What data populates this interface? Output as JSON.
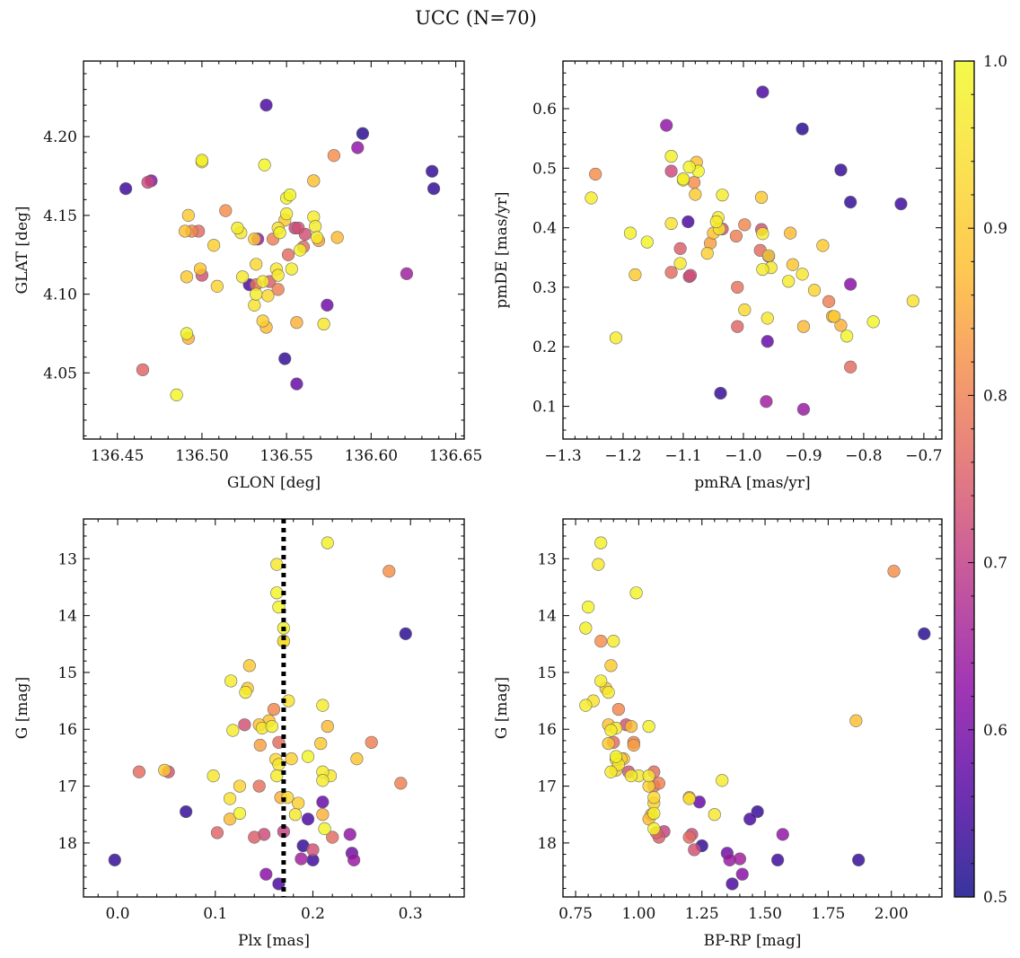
{
  "chart_data": {
    "title": "UCC (N=70)",
    "type": "scatter",
    "colorbar": {
      "colormap": "plasma",
      "range": [
        0.5,
        1.0
      ],
      "ticks": [
        "0.5",
        "0.6",
        "0.7",
        "0.8",
        "0.9",
        "1.0"
      ]
    },
    "panels": [
      {
        "id": "glon-glat",
        "xlabel": "GLON [deg]",
        "ylabel": "GLAT [deg]",
        "xlim": [
          136.43,
          136.655
        ],
        "ylim": [
          4.008,
          4.248
        ],
        "x_inverted": false,
        "y_inverted": false,
        "xticks": [
          "136.45",
          "136.50",
          "136.55",
          "136.60",
          "136.65"
        ],
        "yticks": [
          "4.05",
          "4.10",
          "4.15",
          "4.20"
        ]
      },
      {
        "id": "pmra-pmde",
        "xlabel": "pmRA [mas/yr]",
        "ylabel": "pmDE [mas/yr]",
        "xlim": [
          -1.3,
          -0.67
        ],
        "ylim": [
          0.045,
          0.68
        ],
        "x_inverted": false,
        "y_inverted": false,
        "xticks": [
          "−1.3",
          "−1.2",
          "−1.1",
          "−1.0",
          "−0.9",
          "−0.8",
          "−0.7"
        ],
        "yticks": [
          "0.1",
          "0.2",
          "0.3",
          "0.4",
          "0.5",
          "0.6"
        ]
      },
      {
        "id": "plx-g",
        "xlabel": "Plx [mas]",
        "ylabel": "G [mag]",
        "xlim": [
          -0.035,
          0.355
        ],
        "ylim": [
          12.3,
          18.95
        ],
        "x_inverted": false,
        "y_inverted": true,
        "xticks": [
          "0.0",
          "0.1",
          "0.2",
          "0.3"
        ],
        "yticks": [
          "13",
          "14",
          "15",
          "16",
          "17",
          "18"
        ],
        "vline": 0.17
      },
      {
        "id": "bprp-g",
        "xlabel": "BP-RP [mag]",
        "ylabel": "G [mag]",
        "xlim": [
          0.7,
          2.2
        ],
        "ylim": [
          12.3,
          18.95
        ],
        "x_inverted": false,
        "y_inverted": true,
        "xticks": [
          "0.75",
          "1.00",
          "1.25",
          "1.50",
          "1.75",
          "2.00"
        ],
        "yticks": [
          "13",
          "14",
          "15",
          "16",
          "17",
          "18"
        ]
      }
    ],
    "stars": [
      {
        "glon": 136.538,
        "glat": 4.22,
        "pmra": -0.968,
        "pmde": 0.628,
        "plx": 0.165,
        "bprp": 1.37,
        "g": 18.72,
        "p": 0.55
      },
      {
        "glon": 136.595,
        "glat": 4.202,
        "pmra": -0.902,
        "pmde": 0.566,
        "plx": 0.295,
        "bprp": 2.13,
        "g": 14.32,
        "p": 0.52
      },
      {
        "glon": 136.592,
        "glat": 4.193,
        "pmra": -1.128,
        "pmde": 0.572,
        "plx": 0.238,
        "bprp": 1.57,
        "g": 17.85,
        "p": 0.63
      },
      {
        "glon": 136.578,
        "glat": 4.188,
        "pmra": -1.246,
        "pmde": 0.49,
        "plx": 0.278,
        "bprp": 2.01,
        "g": 13.22,
        "p": 0.82
      },
      {
        "glon": 136.636,
        "glat": 4.178,
        "pmra": -0.838,
        "pmde": 0.497,
        "plx": 0.07,
        "bprp": 1.47,
        "g": 17.45,
        "p": 0.53
      },
      {
        "glon": 136.637,
        "glat": 4.167,
        "pmra": -0.822,
        "pmde": 0.443,
        "plx": -0.003,
        "bprp": 1.87,
        "g": 18.3,
        "p": 0.53
      },
      {
        "glon": 136.455,
        "glat": 4.167,
        "pmra": -0.738,
        "pmde": 0.44,
        "plx": 0.2,
        "bprp": 1.55,
        "g": 18.3,
        "p": 0.54
      },
      {
        "glon": 136.47,
        "glat": 4.172,
        "pmra": -0.822,
        "pmde": 0.305,
        "plx": 0.152,
        "bprp": 1.41,
        "g": 18.55,
        "p": 0.62
      },
      {
        "glon": 136.468,
        "glat": 4.171,
        "pmra": -1.12,
        "pmde": 0.495,
        "plx": 0.15,
        "bprp": 1.21,
        "g": 17.85,
        "p": 0.72
      },
      {
        "glon": 136.5,
        "glat": 4.185,
        "pmra": -1.12,
        "pmde": 0.52,
        "plx": 0.215,
        "bprp": 0.85,
        "g": 12.72,
        "p": 0.98
      },
      {
        "glon": 136.5,
        "glat": 4.184,
        "pmra": -1.1,
        "pmde": 0.48,
        "plx": 0.163,
        "bprp": 0.84,
        "g": 13.1,
        "p": 0.96
      },
      {
        "glon": 136.537,
        "glat": 4.182,
        "pmra": -1.075,
        "pmde": 0.495,
        "plx": 0.163,
        "bprp": 0.99,
        "g": 13.6,
        "p": 0.99
      },
      {
        "glon": 136.566,
        "glat": 4.172,
        "pmra": -1.078,
        "pmde": 0.51,
        "plx": 0.155,
        "bprp": 1.86,
        "g": 15.85,
        "p": 0.88
      },
      {
        "glon": 136.552,
        "glat": 4.163,
        "pmra": -1.09,
        "pmde": 0.502,
        "plx": 0.165,
        "bprp": 0.8,
        "g": 13.85,
        "p": 0.99
      },
      {
        "glon": 136.55,
        "glat": 4.161,
        "pmra": -1.1,
        "pmde": 0.482,
        "plx": 0.17,
        "bprp": 0.79,
        "g": 14.22,
        "p": 0.98
      },
      {
        "glon": 136.514,
        "glat": 4.153,
        "pmra": -1.082,
        "pmde": 0.476,
        "plx": 0.17,
        "bprp": 0.85,
        "g": 14.45,
        "p": 0.82
      },
      {
        "glon": 136.492,
        "glat": 4.15,
        "pmra": -1.08,
        "pmde": 0.456,
        "plx": 0.135,
        "bprp": 0.89,
        "g": 14.88,
        "p": 0.9
      },
      {
        "glon": 136.55,
        "glat": 4.151,
        "pmra": -1.035,
        "pmde": 0.455,
        "plx": 0.17,
        "bprp": 0.9,
        "g": 14.45,
        "p": 0.97
      },
      {
        "glon": 136.566,
        "glat": 4.149,
        "pmra": -1.253,
        "pmde": 0.45,
        "plx": 0.116,
        "bprp": 0.85,
        "g": 15.15,
        "p": 0.97
      },
      {
        "glon": 136.549,
        "glat": 4.147,
        "pmra": -0.97,
        "pmde": 0.451,
        "plx": 0.133,
        "bprp": 0.87,
        "g": 15.28,
        "p": 0.9
      },
      {
        "glon": 136.567,
        "glat": 4.143,
        "pmra": -1.042,
        "pmde": 0.417,
        "plx": 0.131,
        "bprp": 0.88,
        "g": 15.35,
        "p": 0.97
      },
      {
        "glon": 136.545,
        "glat": 4.142,
        "pmra": -1.12,
        "pmde": 0.407,
        "plx": 0.175,
        "bprp": 0.82,
        "g": 15.5,
        "p": 0.95
      },
      {
        "glon": 136.521,
        "glat": 4.142,
        "pmra": -1.045,
        "pmde": 0.41,
        "plx": 0.21,
        "bprp": 0.79,
        "g": 15.58,
        "p": 0.97
      },
      {
        "glon": 136.494,
        "glat": 4.14,
        "pmra": -0.998,
        "pmde": 0.405,
        "plx": 0.16,
        "bprp": 0.92,
        "g": 15.65,
        "p": 0.81
      },
      {
        "glon": 136.557,
        "glat": 4.142,
        "pmra": -0.97,
        "pmde": 0.397,
        "plx": 0.13,
        "bprp": 0.95,
        "g": 15.92,
        "p": 0.73
      },
      {
        "glon": 136.49,
        "glat": 4.14,
        "pmra": -1.05,
        "pmde": 0.391,
        "plx": 0.145,
        "bprp": 0.88,
        "g": 15.92,
        "p": 0.88
      },
      {
        "glon": 136.523,
        "glat": 4.139,
        "pmra": -1.04,
        "pmde": 0.398,
        "plx": 0.148,
        "bprp": 0.91,
        "g": 15.98,
        "p": 0.96
      },
      {
        "glon": 136.546,
        "glat": 4.139,
        "pmra": -1.188,
        "pmde": 0.391,
        "plx": 0.158,
        "bprp": 1.04,
        "g": 15.95,
        "p": 0.98
      },
      {
        "glon": 136.568,
        "glat": 4.136,
        "pmra": -0.968,
        "pmde": 0.39,
        "plx": 0.118,
        "bprp": 0.89,
        "g": 16.02,
        "p": 0.97
      },
      {
        "glon": 136.58,
        "glat": 4.136,
        "pmra": -0.922,
        "pmde": 0.391,
        "plx": 0.215,
        "bprp": 0.97,
        "g": 15.95,
        "p": 0.87
      },
      {
        "glon": 136.542,
        "glat": 4.135,
        "pmra": -1.012,
        "pmde": 0.386,
        "plx": 0.26,
        "bprp": 0.98,
        "g": 16.23,
        "p": 0.8
      },
      {
        "glon": 136.531,
        "glat": 4.135,
        "pmra": -0.868,
        "pmde": 0.37,
        "plx": 0.208,
        "bprp": 0.88,
        "g": 16.25,
        "p": 0.9
      },
      {
        "glon": 136.569,
        "glat": 4.134,
        "pmra": -1.055,
        "pmde": 0.374,
        "plx": 0.146,
        "bprp": 0.98,
        "g": 16.28,
        "p": 0.84
      },
      {
        "glon": 136.56,
        "glat": 4.13,
        "pmra": -0.972,
        "pmde": 0.362,
        "plx": 0.165,
        "bprp": 0.9,
        "g": 16.23,
        "p": 0.77
      },
      {
        "glon": 136.558,
        "glat": 4.128,
        "pmra": -1.16,
        "pmde": 0.376,
        "plx": 0.195,
        "bprp": 0.91,
        "g": 16.48,
        "p": 0.99
      },
      {
        "glon": 136.507,
        "glat": 4.131,
        "pmra": -1.06,
        "pmde": 0.357,
        "plx": 0.178,
        "bprp": 0.93,
        "g": 16.52,
        "p": 0.91
      },
      {
        "glon": 136.532,
        "glat": 4.119,
        "pmra": -0.958,
        "pmde": 0.353,
        "plx": 0.162,
        "bprp": 0.91,
        "g": 16.53,
        "p": 0.93
      },
      {
        "glon": 136.544,
        "glat": 4.116,
        "pmra": -0.954,
        "pmde": 0.333,
        "plx": 0.165,
        "bprp": 0.92,
        "g": 16.62,
        "p": 0.96
      },
      {
        "glon": 136.499,
        "glat": 4.116,
        "pmra": -0.918,
        "pmde": 0.338,
        "plx": 0.245,
        "bprp": 0.94,
        "g": 16.52,
        "p": 0.89
      },
      {
        "glon": 136.553,
        "glat": 4.116,
        "pmra": -0.968,
        "pmde": 0.33,
        "plx": 0.21,
        "bprp": 0.89,
        "g": 16.75,
        "p": 0.97
      },
      {
        "glon": 136.5,
        "glat": 4.112,
        "pmra": -1.088,
        "pmde": 0.32,
        "plx": 0.052,
        "bprp": 0.96,
        "g": 16.75,
        "p": 0.73
      },
      {
        "glon": 136.491,
        "glat": 4.111,
        "pmra": -1.18,
        "pmde": 0.321,
        "plx": 0.048,
        "bprp": 0.91,
        "g": 16.72,
        "p": 0.9
      },
      {
        "glon": 136.524,
        "glat": 4.111,
        "pmra": -0.902,
        "pmde": 0.322,
        "plx": 0.098,
        "bprp": 1.0,
        "g": 16.82,
        "p": 0.96
      },
      {
        "glon": 136.551,
        "glat": 4.125,
        "pmra": -1.12,
        "pmde": 0.325,
        "plx": 0.022,
        "bprp": 1.06,
        "g": 16.75,
        "p": 0.77
      },
      {
        "glon": 136.545,
        "glat": 4.112,
        "pmra": -1.105,
        "pmde": 0.34,
        "plx": 0.218,
        "bprp": 1.04,
        "g": 16.82,
        "p": 0.96
      },
      {
        "glon": 136.536,
        "glat": 4.108,
        "pmra": -0.925,
        "pmde": 0.31,
        "plx": 0.163,
        "bprp": 0.97,
        "g": 16.82,
        "p": 0.97
      },
      {
        "glon": 136.532,
        "glat": 4.106,
        "pmra": -1.01,
        "pmde": 0.3,
        "plx": 0.145,
        "bprp": 1.06,
        "g": 17.0,
        "p": 0.78
      },
      {
        "glon": 136.509,
        "glat": 4.105,
        "pmra": -0.882,
        "pmde": 0.295,
        "plx": 0.125,
        "bprp": 1.04,
        "g": 17.0,
        "p": 0.92
      },
      {
        "glon": 136.545,
        "glat": 4.103,
        "pmra": -0.858,
        "pmde": 0.276,
        "plx": 0.29,
        "bprp": 1.08,
        "g": 16.95,
        "p": 0.8
      },
      {
        "glon": 136.532,
        "glat": 4.1,
        "pmra": -1.212,
        "pmde": 0.215,
        "plx": 0.21,
        "bprp": 1.33,
        "g": 16.9,
        "p": 0.97
      },
      {
        "glon": 136.539,
        "glat": 4.099,
        "pmra": -0.998,
        "pmde": 0.262,
        "plx": 0.174,
        "bprp": 1.06,
        "g": 17.2,
        "p": 0.93
      },
      {
        "glon": 136.531,
        "glat": 4.093,
        "pmra": -0.718,
        "pmde": 0.277,
        "plx": 0.115,
        "bprp": 1.2,
        "g": 17.22,
        "p": 0.95
      },
      {
        "glon": 136.536,
        "glat": 4.083,
        "pmra": -0.849,
        "pmde": 0.251,
        "plx": 0.185,
        "bprp": 1.06,
        "g": 17.3,
        "p": 0.91
      },
      {
        "glon": 136.556,
        "glat": 4.082,
        "pmra": -0.838,
        "pmde": 0.236,
        "plx": 0.167,
        "bprp": 1.2,
        "g": 17.2,
        "p": 0.86
      },
      {
        "glon": 136.572,
        "glat": 4.081,
        "pmra": -0.96,
        "pmde": 0.248,
        "plx": 0.182,
        "bprp": 1.3,
        "g": 17.5,
        "p": 0.96
      },
      {
        "glon": 136.538,
        "glat": 4.079,
        "pmra": -0.9,
        "pmde": 0.234,
        "plx": 0.115,
        "bprp": 1.04,
        "g": 17.58,
        "p": 0.87
      },
      {
        "glon": 136.491,
        "glat": 4.075,
        "pmra": -0.828,
        "pmde": 0.218,
        "plx": 0.125,
        "bprp": 1.06,
        "g": 17.48,
        "p": 0.99
      },
      {
        "glon": 136.492,
        "glat": 4.072,
        "pmra": -0.852,
        "pmde": 0.251,
        "plx": 0.21,
        "bprp": 1.05,
        "g": 17.5,
        "p": 0.86
      },
      {
        "glon": 136.465,
        "glat": 4.052,
        "pmra": -1.01,
        "pmde": 0.234,
        "plx": 0.102,
        "bprp": 1.07,
        "g": 17.82,
        "p": 0.76
      },
      {
        "glon": 136.485,
        "glat": 4.036,
        "pmra": -0.784,
        "pmde": 0.242,
        "plx": 0.212,
        "bprp": 1.06,
        "g": 17.75,
        "p": 0.99
      },
      {
        "glon": 136.549,
        "glat": 4.059,
        "pmra": -1.038,
        "pmde": 0.122,
        "plx": 0.19,
        "bprp": 1.25,
        "g": 18.05,
        "p": 0.53
      },
      {
        "glon": 136.556,
        "glat": 4.043,
        "pmra": -0.96,
        "pmde": 0.209,
        "plx": 0.21,
        "bprp": 1.24,
        "g": 17.28,
        "p": 0.58
      },
      {
        "glon": 136.574,
        "glat": 4.093,
        "pmra": -0.958,
        "pmde": 0.352,
        "plx": 0.24,
        "bprp": 1.35,
        "g": 18.18,
        "p": 0.59
      },
      {
        "glon": 136.621,
        "glat": 4.113,
        "pmra": -0.962,
        "pmde": 0.108,
        "plx": 0.188,
        "bprp": 1.4,
        "g": 18.28,
        "p": 0.65
      },
      {
        "glon": 136.533,
        "glat": 4.135,
        "pmra": -0.9,
        "pmde": 0.095,
        "plx": 0.242,
        "bprp": 1.36,
        "g": 18.3,
        "p": 0.64
      },
      {
        "glon": 136.555,
        "glat": 4.142,
        "pmra": -1.09,
        "pmde": 0.318,
        "plx": 0.17,
        "bprp": 1.1,
        "g": 17.8,
        "p": 0.71
      },
      {
        "glon": 136.561,
        "glat": 4.138,
        "pmra": -1.035,
        "pmde": 0.398,
        "plx": 0.2,
        "bprp": 1.22,
        "g": 18.12,
        "p": 0.73
      },
      {
        "glon": 136.498,
        "glat": 4.14,
        "pmra": -0.822,
        "pmde": 0.166,
        "plx": 0.22,
        "bprp": 1.2,
        "g": 17.9,
        "p": 0.77
      },
      {
        "glon": 136.528,
        "glat": 4.106,
        "pmra": -1.092,
        "pmde": 0.41,
        "plx": 0.195,
        "bprp": 1.44,
        "g": 17.58,
        "p": 0.55
      },
      {
        "glon": 136.54,
        "glat": 4.108,
        "pmra": -1.105,
        "pmde": 0.365,
        "plx": 0.14,
        "bprp": 1.08,
        "g": 17.9,
        "p": 0.75
      }
    ]
  }
}
